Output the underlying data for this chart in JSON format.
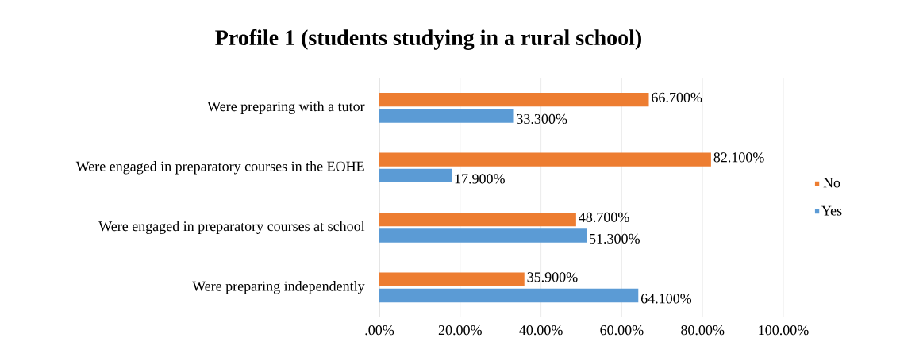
{
  "chart_data": {
    "type": "bar",
    "orientation": "horizontal",
    "title": "Profile 1 (students studying in a rural school)",
    "categories": [
      "Were preparing with a tutor",
      "Were engaged in preparatory courses in the EOHE",
      "Were engaged in preparatory courses at school",
      "Were preparing independently"
    ],
    "series": [
      {
        "name": "Yes",
        "color": "#5b9bd5",
        "values": [
          33.3,
          17.9,
          51.3,
          64.1
        ],
        "value_labels": [
          "33.300%",
          "17.900%",
          "51.300%",
          "64.100%"
        ]
      },
      {
        "name": "No",
        "color": "#ed7d31",
        "values": [
          66.7,
          82.1,
          48.7,
          35.9
        ],
        "value_labels": [
          "66.700%",
          "82.100%",
          "48.700%",
          "35.900%"
        ]
      }
    ],
    "xlim": [
      0,
      100
    ],
    "xticks": [
      {
        "value": 0,
        "label": ".00%"
      },
      {
        "value": 20,
        "label": "20.00%"
      },
      {
        "value": 40,
        "label": "40.00%"
      },
      {
        "value": 60,
        "label": "60.00%"
      },
      {
        "value": 80,
        "label": "80.00%"
      },
      {
        "value": 100,
        "label": "100.00%"
      }
    ],
    "grid": "x",
    "legend": "right"
  }
}
